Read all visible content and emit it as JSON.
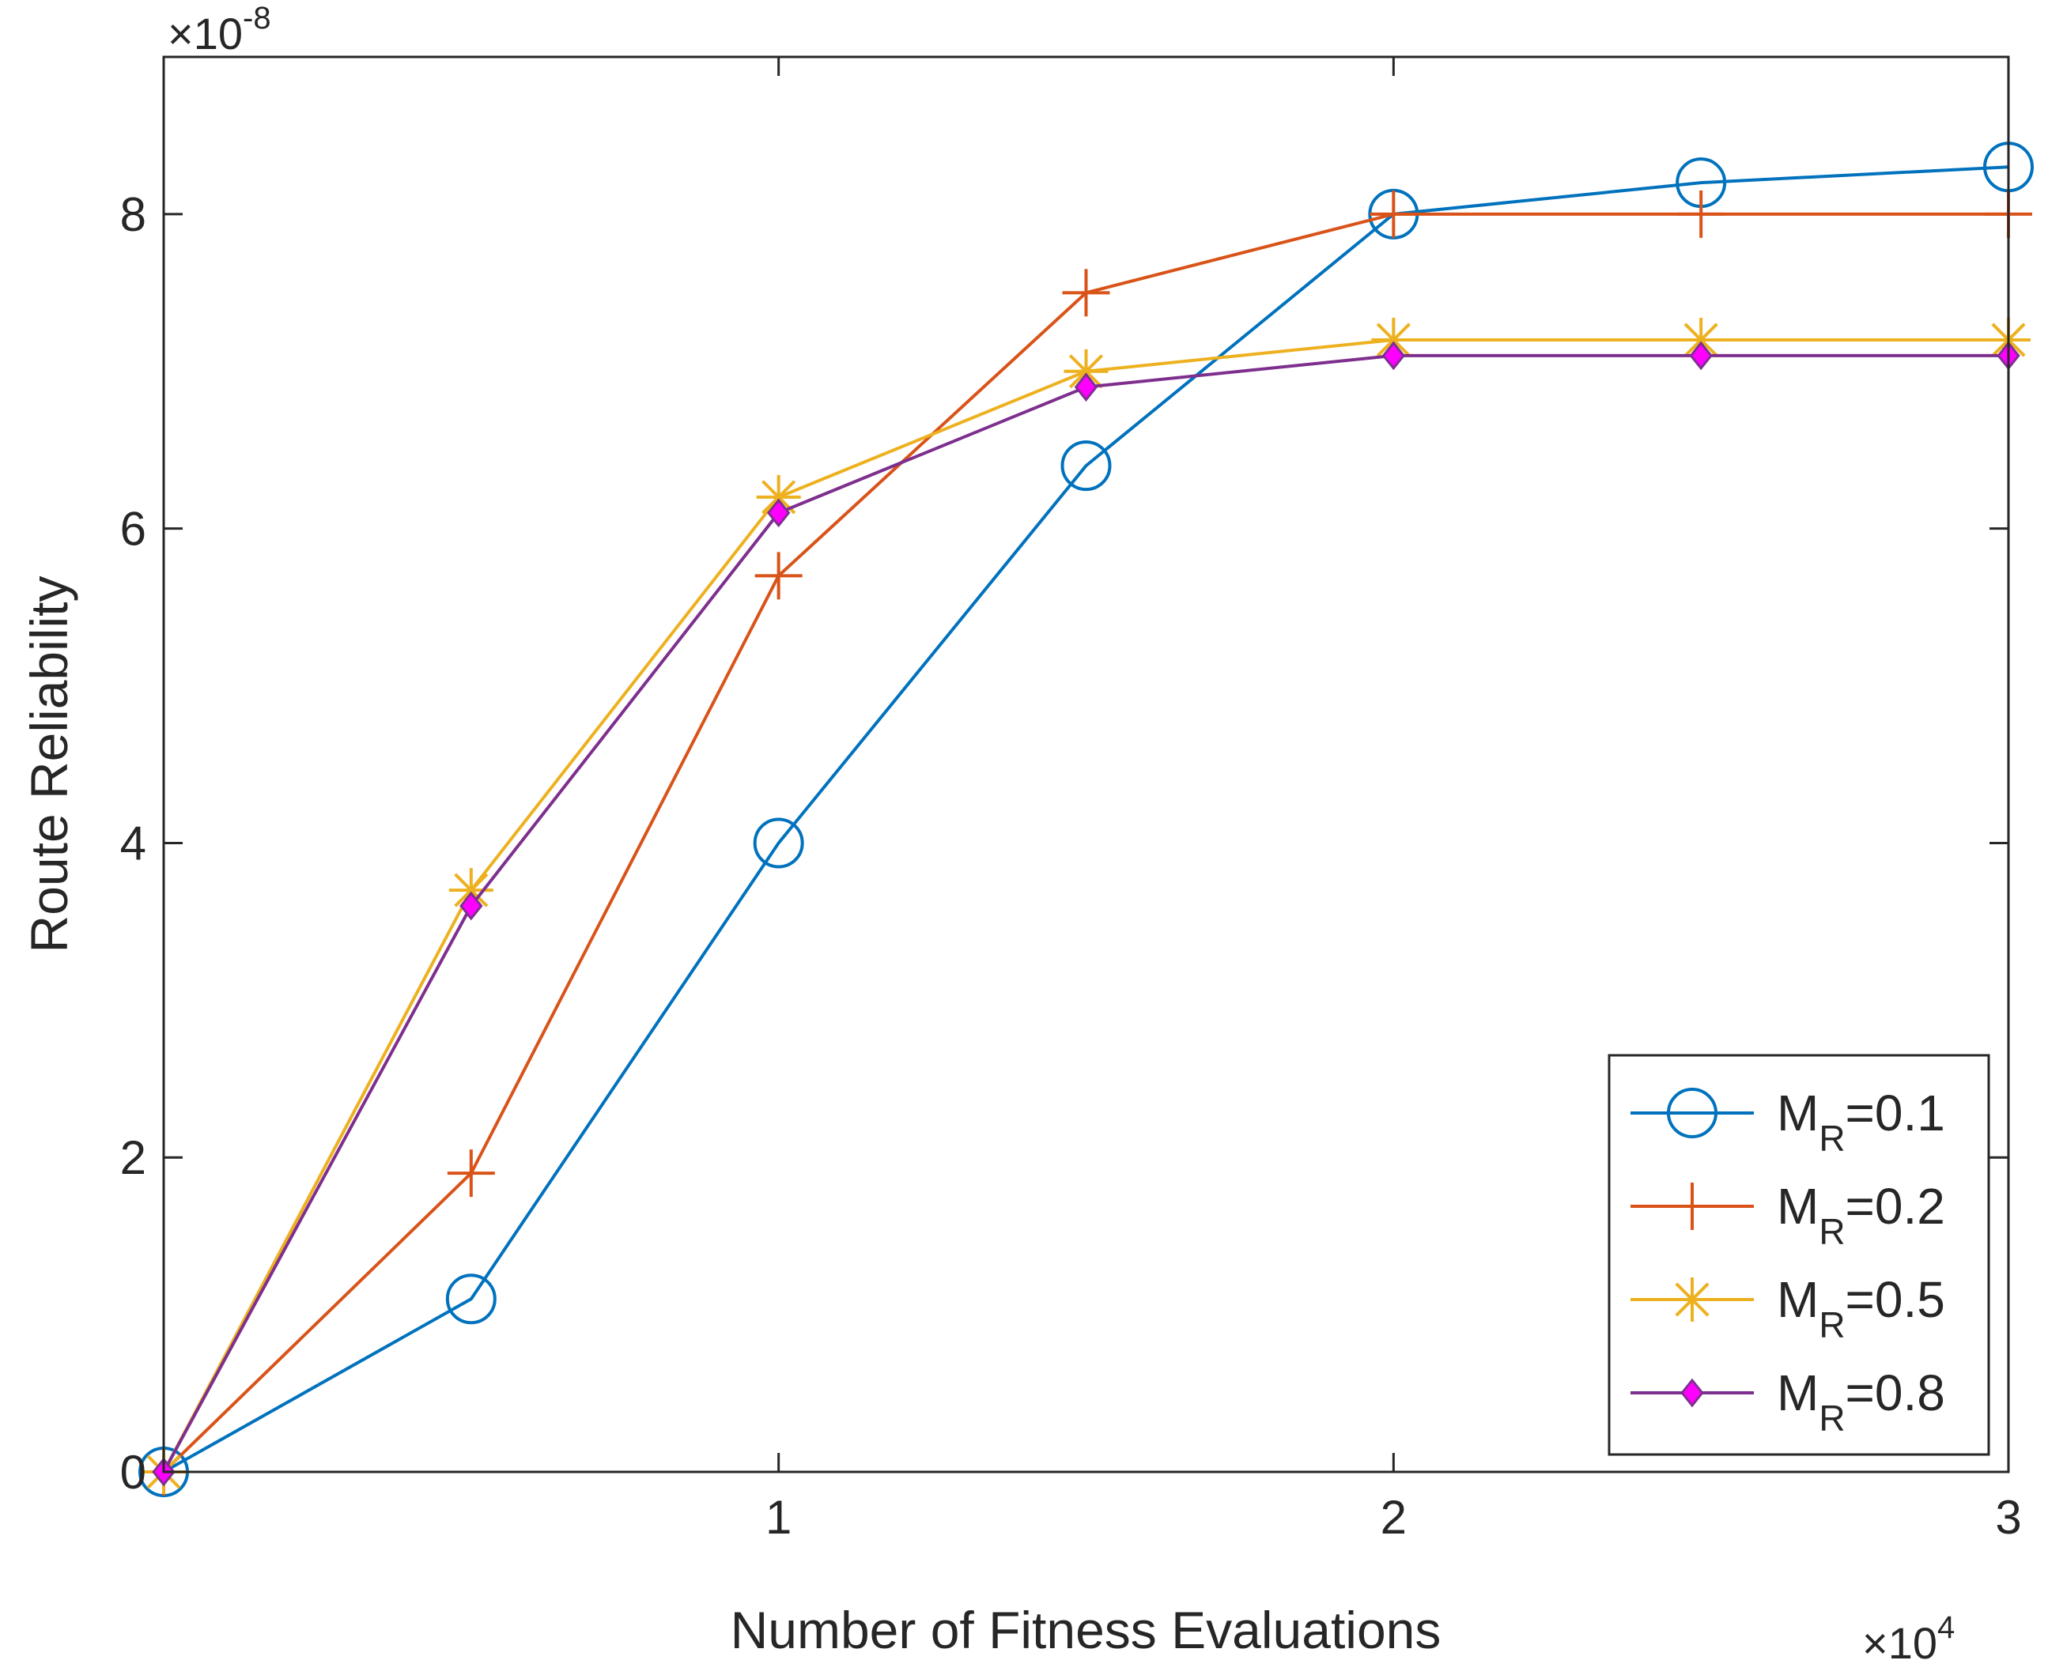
{
  "chart_data": {
    "type": "line",
    "title": "",
    "xlabel": "Number of Fitness Evaluations",
    "ylabel": "Route Reliability",
    "x_exponent_label": {
      "prefix": "×10",
      "power": "4"
    },
    "y_exponent_label": {
      "prefix": "×10",
      "power": "-8"
    },
    "xlim": [
      0,
      3
    ],
    "ylim": [
      0,
      9
    ],
    "xticks": [
      1,
      2,
      3
    ],
    "xtick_labels": [
      "1",
      "2",
      "3"
    ],
    "yticks": [
      0,
      2,
      4,
      6,
      8
    ],
    "ytick_labels": [
      "0",
      "2",
      "4",
      "6",
      "8"
    ],
    "x": [
      0,
      0.5,
      1,
      1.5,
      2,
      2.5,
      3
    ],
    "legend_position": "bottom-right",
    "series": [
      {
        "name": "M",
        "subscript": "R",
        "suffix": "=0.1",
        "color": "#0072BD",
        "marker": "circle",
        "values": [
          0,
          1.1,
          4.0,
          6.4,
          8.0,
          8.2,
          8.3
        ]
      },
      {
        "name": "M",
        "subscript": "R",
        "suffix": "=0.2",
        "color": "#D95319",
        "marker": "plus",
        "values": [
          0,
          1.9,
          5.7,
          7.5,
          8.0,
          8.0,
          8.0
        ]
      },
      {
        "name": "M",
        "subscript": "R",
        "suffix": "=0.5",
        "color": "#EDB120",
        "marker": "star",
        "values": [
          0,
          3.7,
          6.2,
          7.0,
          7.2,
          7.2,
          7.2
        ]
      },
      {
        "name": "M",
        "subscript": "R",
        "suffix": "=0.8",
        "color": "#7E2F8E",
        "marker": "diamond",
        "marker_fill": "#FF00FF",
        "values": [
          0,
          3.6,
          6.1,
          6.9,
          7.1,
          7.1,
          7.1
        ]
      }
    ]
  }
}
